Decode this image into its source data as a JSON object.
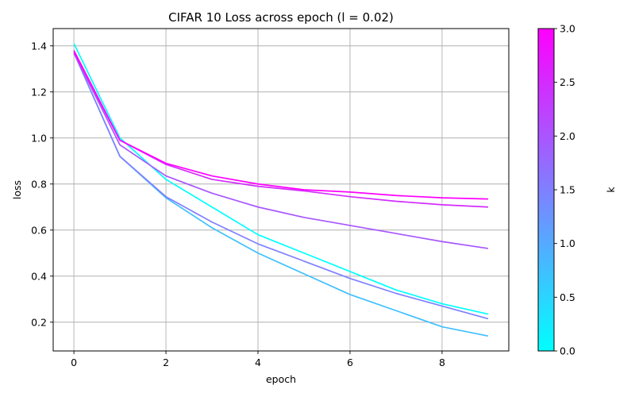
{
  "chart_data": {
    "type": "line",
    "title": "CIFAR 10 Loss across epoch (l = 0.02)",
    "xlabel": "epoch",
    "ylabel": "loss",
    "xlim": [
      -0.45,
      9.45
    ],
    "ylim": [
      0.075,
      1.475
    ],
    "xticks": [
      "0",
      "2",
      "4",
      "6",
      "8"
    ],
    "yticks": [
      "0.2",
      "0.4",
      "0.6",
      "0.8",
      "1.0",
      "1.2",
      "1.4"
    ],
    "grid": true,
    "x": [
      0,
      1,
      2,
      3,
      4,
      5,
      6,
      7,
      8,
      9
    ],
    "series": [
      {
        "k": 0.0,
        "color": "#00ffff",
        "values": [
          1.41,
          1.0,
          0.82,
          0.7,
          0.58,
          0.5,
          0.42,
          0.34,
          0.28,
          0.235
        ]
      },
      {
        "k": 0.5,
        "color": "#3fc0ff",
        "values": [
          1.37,
          0.92,
          0.74,
          0.61,
          0.5,
          0.41,
          0.32,
          0.25,
          0.18,
          0.14
        ]
      },
      {
        "k": 1.0,
        "color": "#7f80ff",
        "values": [
          1.37,
          0.92,
          0.745,
          0.635,
          0.54,
          0.465,
          0.39,
          0.325,
          0.27,
          0.215
        ]
      },
      {
        "k": 2.0,
        "color": "#a857ff",
        "values": [
          1.37,
          0.97,
          0.835,
          0.76,
          0.7,
          0.655,
          0.62,
          0.585,
          0.55,
          0.52
        ]
      },
      {
        "k": 2.5,
        "color": "#d42bff",
        "values": [
          1.37,
          0.99,
          0.885,
          0.82,
          0.79,
          0.77,
          0.745,
          0.725,
          0.71,
          0.7
        ]
      },
      {
        "k": 3.0,
        "color": "#ff00ff",
        "values": [
          1.38,
          0.99,
          0.89,
          0.835,
          0.8,
          0.775,
          0.765,
          0.75,
          0.74,
          0.735
        ]
      }
    ],
    "colorbar": {
      "label": "k",
      "min": 0.0,
      "max": 3.0,
      "ticks": [
        "0.0",
        "0.5",
        "1.0",
        "1.5",
        "2.0",
        "2.5",
        "3.0"
      ],
      "colormap": "cool",
      "color_low": "#00ffff",
      "color_high": "#ff00ff"
    }
  }
}
